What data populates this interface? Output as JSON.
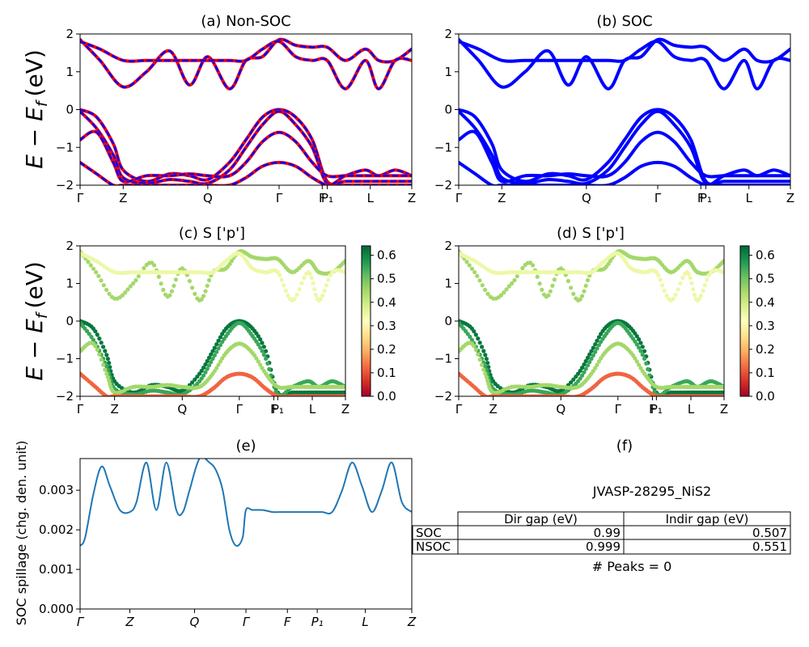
{
  "figure": {
    "panel_titles": {
      "a": "(a) Non-SOC",
      "b": "(b) SOC",
      "c": "(c)  S ['p']",
      "d": "(d) S ['p']",
      "e": "(e)",
      "f": "(f)"
    },
    "ylabel_main": "E − E",
    "ylabel_sub": "f",
    "ylabel_unit": "(eV)",
    "spillage_ylabel": "SOC spillage (chg. den. unit)",
    "colormap": "RdYlGn"
  },
  "chart_data": [
    {
      "panel": "a",
      "type": "line",
      "title": "(a) Non-SOC",
      "ylim": [
        -2,
        2
      ],
      "yticks": [
        "−2",
        "−1",
        "0",
        "1",
        "2"
      ],
      "kpath_labels": [
        "Γ",
        "Z",
        "Q",
        "Γ",
        "F",
        "P₁",
        "L",
        "Z"
      ],
      "kpath_positions": [
        0,
        0.13,
        0.385,
        0.6,
        0.73,
        0.745,
        0.875,
        1
      ],
      "series": [
        {
          "color": "#ff0000",
          "style": "solid"
        },
        {
          "color": "#0000ff",
          "style": "dashed"
        }
      ],
      "bands": [
        {
          "x": [
            0,
            0.06,
            0.13,
            0.2,
            0.27,
            0.33,
            0.385,
            0.45,
            0.5,
            0.55,
            0.6,
            0.65,
            0.7,
            0.745,
            0.8,
            0.86,
            0.9,
            0.95,
            1
          ],
          "y": [
            1.85,
            1.3,
            0.6,
            1.0,
            1.55,
            0.65,
            1.4,
            0.55,
            1.3,
            1.4,
            1.85,
            1.7,
            1.65,
            1.65,
            1.3,
            1.6,
            1.3,
            1.3,
            1.6
          ]
        },
        {
          "x": [
            0,
            0.06,
            0.13,
            0.2,
            0.27,
            0.33,
            0.385,
            0.45,
            0.5,
            0.55,
            0.6,
            0.65,
            0.7,
            0.745,
            0.8,
            0.86,
            0.9,
            0.95,
            1
          ],
          "y": [
            1.8,
            1.6,
            1.3,
            1.3,
            1.3,
            1.3,
            1.3,
            1.3,
            1.3,
            1.6,
            1.8,
            1.4,
            1.3,
            1.3,
            0.55,
            1.3,
            0.55,
            1.3,
            1.3
          ]
        },
        {
          "x": [
            0,
            0.05,
            0.1,
            0.13,
            0.2,
            0.27,
            0.33,
            0.385,
            0.45,
            0.5,
            0.55,
            0.6,
            0.65,
            0.7,
            0.745,
            0.8,
            0.86,
            0.9,
            0.95,
            1
          ],
          "y": [
            0,
            -0.2,
            -0.9,
            -1.6,
            -1.9,
            -1.7,
            -1.75,
            -1.85,
            -1.4,
            -0.8,
            -0.2,
            0,
            -0.2,
            -0.8,
            -1.9,
            -1.9,
            -1.9,
            -1.9,
            -1.9,
            -1.9
          ]
        },
        {
          "x": [
            0,
            0.05,
            0.1,
            0.13,
            0.2,
            0.27,
            0.33,
            0.385,
            0.45,
            0.5,
            0.55,
            0.6,
            0.65,
            0.7,
            0.745,
            0.8,
            0.86,
            0.9,
            0.95,
            1
          ],
          "y": [
            -0.05,
            -0.5,
            -1.2,
            -1.8,
            -1.95,
            -1.85,
            -1.9,
            -1.95,
            -1.6,
            -1.0,
            -0.4,
            -0.05,
            -0.4,
            -1.0,
            -1.95,
            -1.75,
            -1.6,
            -1.75,
            -1.6,
            -1.75
          ]
        },
        {
          "x": [
            0,
            0.05,
            0.1,
            0.13,
            0.2,
            0.27,
            0.33,
            0.385,
            0.45,
            0.5,
            0.55,
            0.6,
            0.65,
            0.7,
            0.745,
            0.8,
            0.86,
            0.9,
            0.95,
            1
          ],
          "y": [
            -0.8,
            -0.6,
            -1.4,
            -1.9,
            -1.75,
            -1.75,
            -1.7,
            -1.75,
            -1.75,
            -1.4,
            -0.85,
            -0.6,
            -0.85,
            -1.4,
            -1.75,
            -1.75,
            -1.75,
            -1.75,
            -1.75,
            -1.75
          ]
        },
        {
          "x": [
            0,
            0.05,
            0.1,
            0.13,
            0.2,
            0.27,
            0.33,
            0.385,
            0.45,
            0.5,
            0.55,
            0.6,
            0.65,
            0.7,
            0.745,
            0.8,
            0.86,
            0.9,
            0.95,
            1
          ],
          "y": [
            -1.4,
            -1.7,
            -2.0,
            -2.0,
            -2.0,
            -2.0,
            -2.0,
            -2.0,
            -2.0,
            -1.8,
            -1.5,
            -1.4,
            -1.5,
            -1.8,
            -2.0,
            -2.0,
            -2.0,
            -2.0,
            -2.0,
            -2.0
          ]
        }
      ]
    },
    {
      "panel": "b",
      "type": "line",
      "title": "(b) SOC",
      "ylim": [
        -2,
        2
      ],
      "yticks": [
        "−2",
        "−1",
        "0",
        "1",
        "2"
      ],
      "kpath_labels": [
        "Γ",
        "Z",
        "Q",
        "Γ",
        "F",
        "P₁",
        "L",
        "Z"
      ],
      "kpath_positions": [
        0,
        0.13,
        0.385,
        0.6,
        0.73,
        0.745,
        0.875,
        1
      ],
      "series": [
        {
          "color": "#0000ff",
          "style": "solid"
        }
      ],
      "same_bands_as": "a"
    },
    {
      "panel": "c",
      "type": "scatter",
      "title": "(c)  S ['p']",
      "ylim": [
        -2,
        2
      ],
      "yticks": [
        "−2",
        "−1",
        "0",
        "1",
        "2"
      ],
      "kpath_labels": [
        "Γ",
        "Z",
        "Q",
        "Γ",
        "F",
        "P₁",
        "L",
        "Z"
      ],
      "kpath_positions": [
        0,
        0.13,
        0.385,
        0.6,
        0.73,
        0.745,
        0.875,
        1
      ],
      "colorbar": {
        "min": 0.0,
        "max": 0.64,
        "ticks": [
          "0.0",
          "0.1",
          "0.2",
          "0.3",
          "0.4",
          "0.5",
          "0.6"
        ]
      },
      "band_weights": [
        0.45,
        0.35,
        0.62,
        0.55,
        0.45,
        0.12
      ],
      "same_bands_as": "a"
    },
    {
      "panel": "d",
      "type": "scatter",
      "title": "(d) S ['p']",
      "ylim": [
        -2,
        2
      ],
      "yticks": [
        "−2",
        "−1",
        "0",
        "1",
        "2"
      ],
      "kpath_labels": [
        "Γ",
        "Z",
        "Q",
        "Γ",
        "F",
        "P₁",
        "L",
        "Z"
      ],
      "kpath_positions": [
        0,
        0.13,
        0.385,
        0.6,
        0.73,
        0.745,
        0.875,
        1
      ],
      "colorbar": {
        "min": 0.0,
        "max": 0.64,
        "ticks": [
          "0.0",
          "0.1",
          "0.2",
          "0.3",
          "0.4",
          "0.5",
          "0.6"
        ]
      },
      "band_weights": [
        0.45,
        0.35,
        0.62,
        0.55,
        0.45,
        0.12
      ],
      "same_bands_as": "a"
    },
    {
      "panel": "e",
      "type": "line",
      "title": "(e)",
      "ylabel": "SOC spillage (chg. den. unit)",
      "ylim": [
        0,
        0.0038
      ],
      "yticks": [
        "0.000",
        "0.001",
        "0.002",
        "0.003"
      ],
      "ytick_values": [
        0,
        0.001,
        0.002,
        0.003
      ],
      "kpath_labels": [
        "Γ",
        "Z",
        "Q",
        "Γ",
        "F",
        "P₁",
        "L",
        "Z"
      ],
      "kpath_positions": [
        0,
        0.15,
        0.345,
        0.5,
        0.625,
        0.715,
        0.86,
        1
      ],
      "color": "#1f77b4",
      "x": [
        0,
        0.015,
        0.04,
        0.065,
        0.09,
        0.12,
        0.15,
        0.17,
        0.2,
        0.23,
        0.26,
        0.29,
        0.31,
        0.33,
        0.36,
        0.39,
        0.41,
        0.43,
        0.45,
        0.47,
        0.49,
        0.5,
        0.52,
        0.55,
        0.58,
        0.6,
        0.63,
        0.66,
        0.7,
        0.73,
        0.76,
        0.79,
        0.82,
        0.85,
        0.88,
        0.91,
        0.94,
        0.97,
        1
      ],
      "y": [
        0.0016,
        0.0018,
        0.0029,
        0.0036,
        0.0031,
        0.0025,
        0.00245,
        0.0027,
        0.0037,
        0.0025,
        0.0037,
        0.0025,
        0.00245,
        0.003,
        0.0038,
        0.0037,
        0.0035,
        0.003,
        0.002,
        0.0016,
        0.0018,
        0.0025,
        0.0025,
        0.0025,
        0.00245,
        0.00245,
        0.00245,
        0.00245,
        0.00245,
        0.00245,
        0.00245,
        0.003,
        0.0037,
        0.0031,
        0.00245,
        0.003,
        0.0037,
        0.0027,
        0.00245
      ]
    },
    {
      "panel": "f",
      "type": "table",
      "title": "(f)",
      "caption": "JVASP-28295_NiS2",
      "columns": [
        "Dir gap (eV)",
        "Indir gap (eV)"
      ],
      "rows": [
        {
          "label": "SOC",
          "values": [
            "0.99",
            "0.507"
          ]
        },
        {
          "label": "NSOC",
          "values": [
            "0.999",
            "0.551"
          ]
        }
      ],
      "footer": "# Peaks = 0"
    }
  ]
}
